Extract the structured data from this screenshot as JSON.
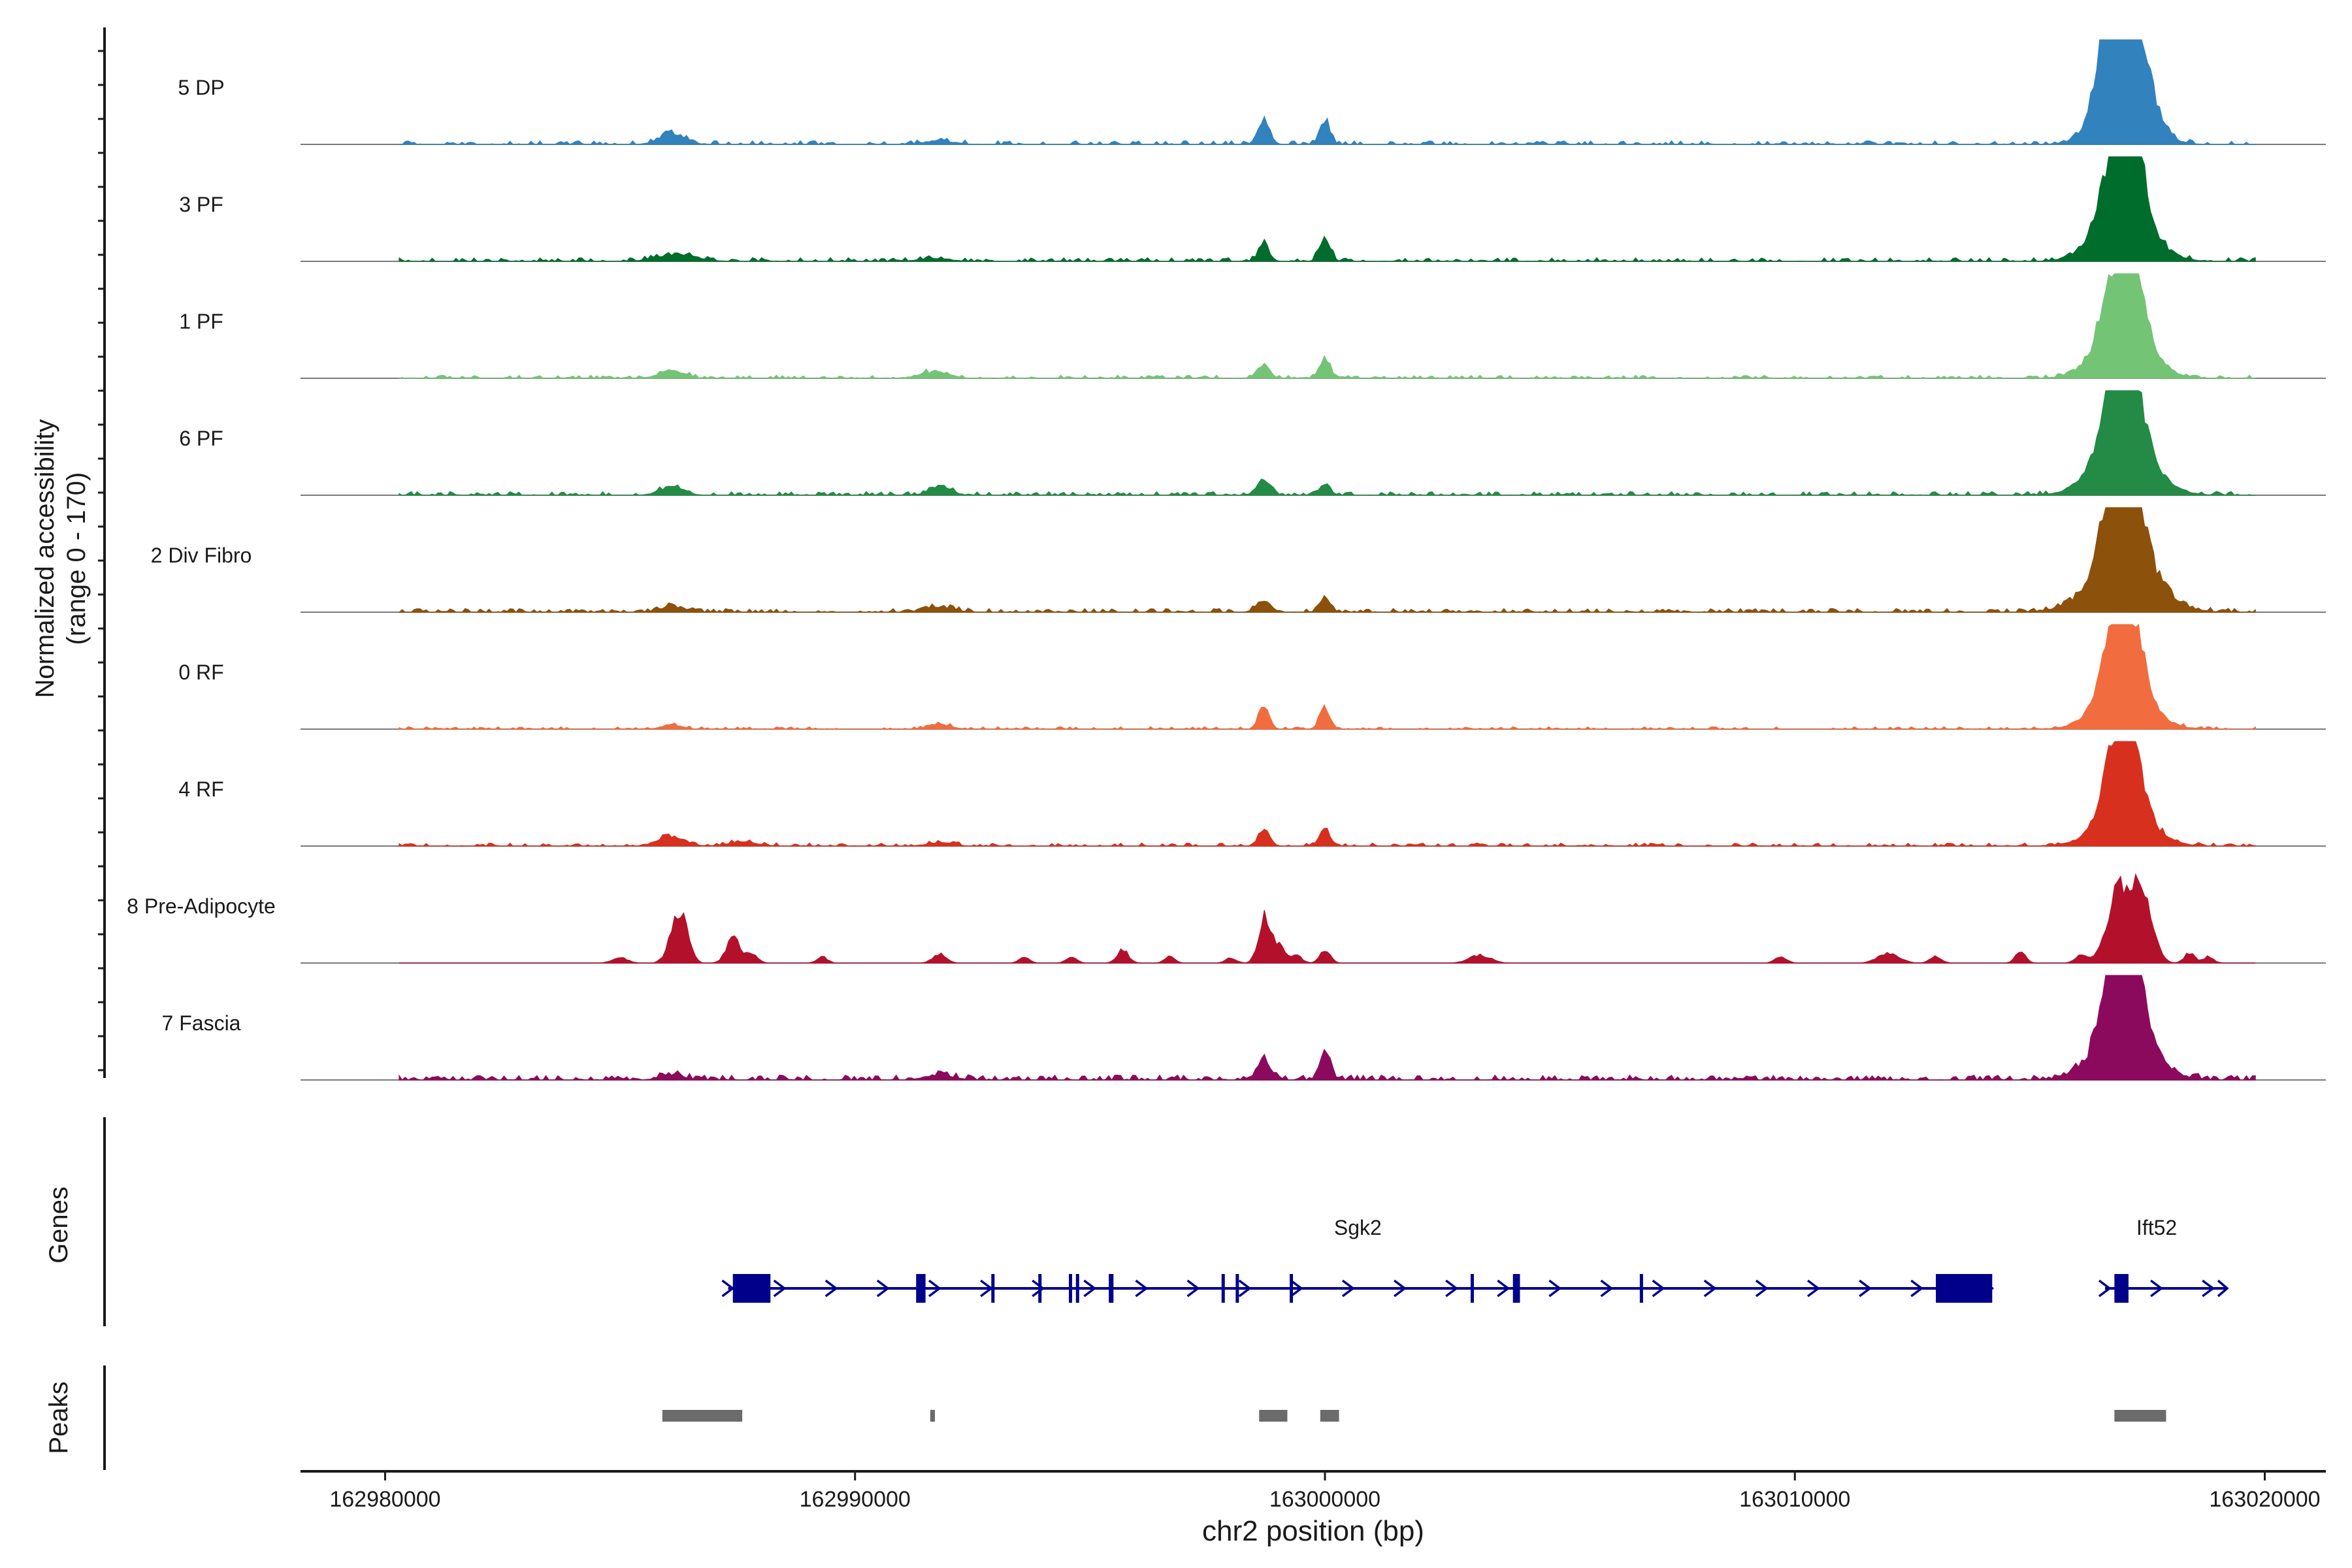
{
  "chart_data": {
    "type": "genome-browser-coverage",
    "genomic_axis": {
      "label": "chr2 position (bp)",
      "range": [
        162978200,
        163021300
      ],
      "ticks": [
        162980000,
        162990000,
        163000000,
        163010000,
        163020000
      ],
      "tick_labels": [
        "162980000",
        "162990000",
        "163000000",
        "163010000",
        "163020000"
      ]
    },
    "coverage": {
      "ylabel_line1": "Normalized accessibility",
      "ylabel_line2": "(range 0 - 170)",
      "ylim": [
        0,
        170
      ],
      "tracks": [
        {
          "name": "5 DP",
          "color": "#3182bd",
          "baseline_noise": 6,
          "noise_density": 0.45,
          "peaks": [
            [
              162986100,
              22,
              260
            ],
            [
              162991800,
              7,
              300
            ],
            [
              162998700,
              48,
              120
            ],
            [
              163000000,
              45,
              110
            ],
            [
              163016700,
              160,
              250
            ],
            [
              163017200,
              160,
              300
            ],
            [
              163017000,
              120,
              500
            ]
          ]
        },
        {
          "name": "3 PF",
          "color": "#006d2c",
          "baseline_noise": 6,
          "noise_density": 0.45,
          "peaks": [
            [
              162986200,
              14,
              400
            ],
            [
              162991700,
              6,
              300
            ],
            [
              162998700,
              36,
              110
            ],
            [
              163000000,
              45,
              110
            ],
            [
              163016800,
              130,
              260
            ],
            [
              163017200,
              165,
              220
            ],
            [
              163017000,
              110,
              550
            ]
          ]
        },
        {
          "name": "1 PF",
          "color": "#74c476",
          "baseline_noise": 5,
          "noise_density": 0.45,
          "peaks": [
            [
              162986100,
              15,
              260
            ],
            [
              162991700,
              13,
              280
            ],
            [
              162998700,
              28,
              120
            ],
            [
              163000000,
              38,
              110
            ],
            [
              163016800,
              120,
              260
            ],
            [
              163017200,
              145,
              220
            ],
            [
              163017000,
              90,
              550
            ]
          ]
        },
        {
          "name": "6 PF",
          "color": "#238b45",
          "baseline_noise": 6,
          "noise_density": 0.5,
          "peaks": [
            [
              162986100,
              16,
              250
            ],
            [
              162991800,
              18,
              220
            ],
            [
              162998700,
              28,
              140
            ],
            [
              163000000,
              20,
              110
            ],
            [
              163016800,
              140,
              260
            ],
            [
              163017200,
              125,
              240
            ],
            [
              163017000,
              95,
              600
            ]
          ]
        },
        {
          "name": "2 Div Fibro",
          "color": "#8c510a",
          "baseline_noise": 6,
          "noise_density": 0.55,
          "peaks": [
            [
              162986100,
              10,
              250
            ],
            [
              162991800,
              10,
              300
            ],
            [
              162998700,
              20,
              150
            ],
            [
              163000000,
              28,
              110
            ],
            [
              163016800,
              150,
              260
            ],
            [
              163017200,
              165,
              240
            ],
            [
              163017000,
              110,
              650
            ]
          ]
        },
        {
          "name": "0 RF",
          "color": "#f16d3f",
          "baseline_noise": 4,
          "noise_density": 0.4,
          "peaks": [
            [
              162986100,
              9,
              200
            ],
            [
              162991800,
              10,
              220
            ],
            [
              162998700,
              45,
              110
            ],
            [
              163000000,
              42,
              110
            ],
            [
              163016800,
              140,
              240
            ],
            [
              163017200,
              125,
              230
            ],
            [
              163017000,
              80,
              550
            ]
          ]
        },
        {
          "name": "4 RF",
          "color": "#d7301f",
          "baseline_noise": 5,
          "noise_density": 0.45,
          "peaks": [
            [
              162986100,
              20,
              260
            ],
            [
              162987600,
              8,
              300
            ],
            [
              162991800,
              7,
              260
            ],
            [
              162998700,
              33,
              120
            ],
            [
              163000000,
              33,
              110
            ],
            [
              163016800,
              120,
              240
            ],
            [
              163017200,
              115,
              230
            ],
            [
              163017000,
              70,
              550
            ]
          ]
        },
        {
          "name": "8 Pre-Adipocyte",
          "color": "#b3112b",
          "baseline_noise": 0,
          "noise_density": 0.0,
          "peaks": [
            [
              162985000,
              10,
              160
            ],
            [
              162986200,
              75,
              160
            ],
            [
              162986400,
              45,
              120
            ],
            [
              162987400,
              50,
              140
            ],
            [
              162987800,
              20,
              120
            ],
            [
              162989300,
              12,
              110
            ],
            [
              162991800,
              18,
              140
            ],
            [
              162993600,
              10,
              110
            ],
            [
              162994600,
              12,
              110
            ],
            [
              162995700,
              25,
              120
            ],
            [
              162996700,
              12,
              110
            ],
            [
              162998000,
              10,
              110
            ],
            [
              162998700,
              85,
              120
            ],
            [
              162999000,
              35,
              140
            ],
            [
              162999400,
              15,
              110
            ],
            [
              163000000,
              25,
              110
            ],
            [
              163003300,
              15,
              220
            ],
            [
              163009700,
              12,
              120
            ],
            [
              163012000,
              20,
              220
            ],
            [
              163013000,
              12,
              120
            ],
            [
              163014800,
              20,
              110
            ],
            [
              163016100,
              15,
              130
            ],
            [
              163016600,
              35,
              160
            ],
            [
              163016900,
              130,
              170
            ],
            [
              163017300,
              155,
              180
            ],
            [
              163017600,
              40,
              160
            ],
            [
              163018400,
              20,
              110
            ],
            [
              163018800,
              12,
              110
            ]
          ]
        },
        {
          "name": "7 Fascia",
          "color": "#8c0a5e",
          "baseline_noise": 8,
          "noise_density": 0.55,
          "peaks": [
            [
              162986100,
              10,
              250
            ],
            [
              162991800,
              10,
              300
            ],
            [
              162998700,
              45,
              130
            ],
            [
              163000000,
              55,
              110
            ],
            [
              163016800,
              165,
              250
            ],
            [
              163017200,
              145,
              240
            ],
            [
              163017000,
              90,
              600
            ]
          ]
        }
      ]
    },
    "genes": {
      "label": "Genes",
      "color": "#00008b",
      "items": [
        {
          "name": "Sgk2",
          "start": 162987300,
          "end": 163014200,
          "label_pos": 163000700,
          "exons": [
            [
              162987400,
              162988200
            ],
            [
              162991300,
              162991500
            ],
            [
              162992900,
              162992950
            ],
            [
              162993900,
              162993950
            ],
            [
              162994550,
              162994600
            ],
            [
              162994700,
              162994750
            ],
            [
              162995400,
              162995500
            ],
            [
              162997800,
              162997850
            ],
            [
              162998100,
              162998150
            ],
            [
              162999250,
              162999300
            ],
            [
              163003100,
              163003150
            ],
            [
              163004000,
              163004150
            ],
            [
              163006700,
              163006750
            ],
            [
              163013000,
              163014200
            ]
          ]
        },
        {
          "name": "Ift52",
          "start": 163016600,
          "end": 163019200,
          "label_pos": 163017700,
          "exons": [
            [
              163016800,
              163017100
            ]
          ]
        }
      ]
    },
    "peaks": {
      "label": "Peaks",
      "color": "#6b6b6b",
      "regions": [
        [
          162985900,
          162987600
        ],
        [
          162991600,
          162991700
        ],
        [
          162998600,
          162999200
        ],
        [
          162999900,
          163000300
        ],
        [
          163016800,
          163017900
        ]
      ]
    }
  }
}
